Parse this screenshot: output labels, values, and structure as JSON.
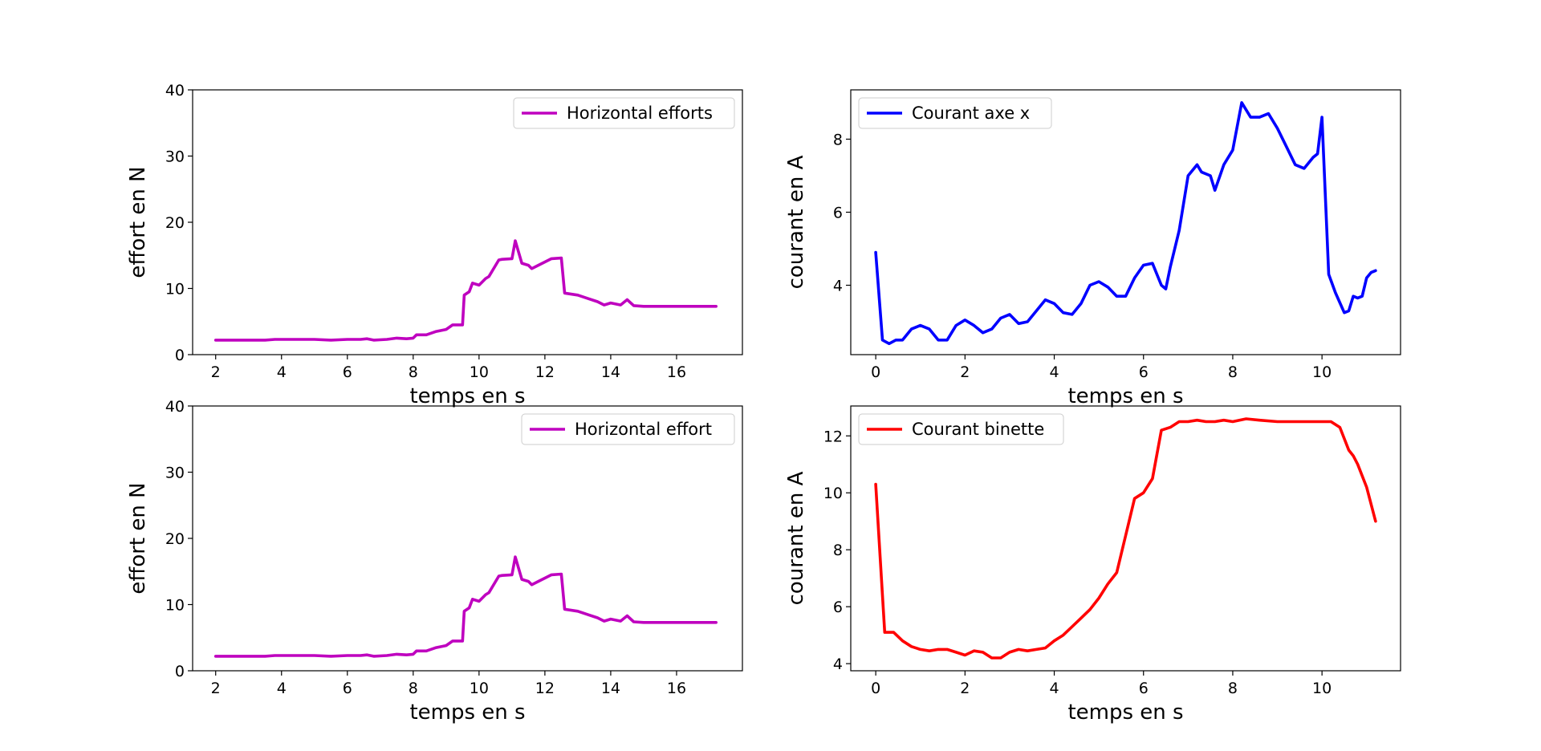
{
  "figure": {
    "background": "#ffffff"
  },
  "chart_data": [
    {
      "id": "top-left",
      "type": "line",
      "xlabel": "temps en s",
      "ylabel": "effort en N",
      "xlim": [
        1.3,
        18
      ],
      "ylim": [
        0,
        40
      ],
      "xticks": [
        2,
        4,
        6,
        8,
        10,
        12,
        14,
        16
      ],
      "yticks": [
        0,
        10,
        20,
        30,
        40
      ],
      "legend": "top-right",
      "series": [
        {
          "name": "Horizontal efforts",
          "color": "#bf00bf",
          "x": [
            2.0,
            2.5,
            3.0,
            3.5,
            3.8,
            4.0,
            4.5,
            5.0,
            5.5,
            6.0,
            6.4,
            6.6,
            6.8,
            7.2,
            7.5,
            7.8,
            8.0,
            8.1,
            8.4,
            8.7,
            9.0,
            9.2,
            9.5,
            9.55,
            9.7,
            9.8,
            10.0,
            10.2,
            10.3,
            10.6,
            10.7,
            11.0,
            11.1,
            11.3,
            11.5,
            11.6,
            11.8,
            12.0,
            12.2,
            12.5,
            12.6,
            13.0,
            13.3,
            13.6,
            13.8,
            14.0,
            14.3,
            14.5,
            14.7,
            15.0,
            16.0,
            17.2
          ],
          "y": [
            2.2,
            2.2,
            2.2,
            2.2,
            2.3,
            2.3,
            2.3,
            2.3,
            2.2,
            2.3,
            2.3,
            2.4,
            2.2,
            2.3,
            2.5,
            2.4,
            2.5,
            3.0,
            3.0,
            3.5,
            3.8,
            4.5,
            4.5,
            9.0,
            9.5,
            10.8,
            10.5,
            11.5,
            11.8,
            14.3,
            14.4,
            14.5,
            17.2,
            13.8,
            13.5,
            13.0,
            13.5,
            14.0,
            14.5,
            14.6,
            9.3,
            9.0,
            8.5,
            8.0,
            7.5,
            7.8,
            7.5,
            8.3,
            7.4,
            7.3,
            7.3,
            7.3
          ]
        }
      ]
    },
    {
      "id": "top-right",
      "type": "line",
      "xlabel": "temps en s",
      "ylabel": "courant en A",
      "xlim": [
        -0.56,
        11.76
      ],
      "ylim": [
        2.1,
        9.35
      ],
      "xticks": [
        0,
        2,
        4,
        6,
        8,
        10
      ],
      "yticks": [
        4,
        6,
        8
      ],
      "legend": "top-left",
      "series": [
        {
          "name": "Courant axe x",
          "color": "#0000ff",
          "x": [
            0.0,
            0.15,
            0.3,
            0.45,
            0.6,
            0.8,
            1.0,
            1.2,
            1.4,
            1.6,
            1.8,
            2.0,
            2.2,
            2.4,
            2.6,
            2.8,
            3.0,
            3.2,
            3.4,
            3.6,
            3.8,
            4.0,
            4.2,
            4.4,
            4.6,
            4.8,
            5.0,
            5.2,
            5.4,
            5.6,
            5.8,
            6.0,
            6.2,
            6.4,
            6.5,
            6.6,
            6.8,
            7.0,
            7.2,
            7.3,
            7.5,
            7.6,
            7.8,
            8.0,
            8.2,
            8.4,
            8.6,
            8.8,
            9.0,
            9.2,
            9.4,
            9.6,
            9.8,
            9.9,
            10.0,
            10.15,
            10.3,
            10.5,
            10.6,
            10.7,
            10.8,
            10.9,
            11.0,
            11.1,
            11.2
          ],
          "y": [
            4.9,
            2.5,
            2.4,
            2.5,
            2.5,
            2.8,
            2.9,
            2.8,
            2.5,
            2.5,
            2.9,
            3.05,
            2.9,
            2.7,
            2.8,
            3.1,
            3.2,
            2.95,
            3.0,
            3.3,
            3.6,
            3.5,
            3.25,
            3.2,
            3.5,
            4.0,
            4.1,
            3.95,
            3.7,
            3.7,
            4.2,
            4.55,
            4.6,
            4.0,
            3.9,
            4.5,
            5.5,
            7.0,
            7.3,
            7.1,
            7.0,
            6.6,
            7.3,
            7.7,
            9.0,
            8.6,
            8.6,
            8.7,
            8.3,
            7.8,
            7.3,
            7.2,
            7.5,
            7.6,
            8.6,
            4.3,
            3.8,
            3.25,
            3.3,
            3.7,
            3.65,
            3.7,
            4.2,
            4.35,
            4.4
          ]
        }
      ]
    },
    {
      "id": "bottom-left",
      "type": "line",
      "xlabel": "temps en s",
      "ylabel": "effort en N",
      "xlim": [
        1.3,
        18
      ],
      "ylim": [
        0,
        40
      ],
      "xticks": [
        2,
        4,
        6,
        8,
        10,
        12,
        14,
        16
      ],
      "yticks": [
        0,
        10,
        20,
        30,
        40
      ],
      "legend": "top-right",
      "series": [
        {
          "name": "Horizontal effort",
          "color": "#bf00bf",
          "x": [
            2.0,
            2.5,
            3.0,
            3.5,
            3.8,
            4.0,
            4.5,
            5.0,
            5.5,
            6.0,
            6.4,
            6.6,
            6.8,
            7.2,
            7.5,
            7.8,
            8.0,
            8.1,
            8.4,
            8.7,
            9.0,
            9.2,
            9.5,
            9.55,
            9.7,
            9.8,
            10.0,
            10.2,
            10.3,
            10.6,
            10.7,
            11.0,
            11.1,
            11.3,
            11.5,
            11.6,
            11.8,
            12.0,
            12.2,
            12.5,
            12.6,
            13.0,
            13.3,
            13.6,
            13.8,
            14.0,
            14.3,
            14.5,
            14.7,
            15.0,
            16.0,
            17.2
          ],
          "y": [
            2.2,
            2.2,
            2.2,
            2.2,
            2.3,
            2.3,
            2.3,
            2.3,
            2.2,
            2.3,
            2.3,
            2.4,
            2.2,
            2.3,
            2.5,
            2.4,
            2.5,
            3.0,
            3.0,
            3.5,
            3.8,
            4.5,
            4.5,
            9.0,
            9.5,
            10.8,
            10.5,
            11.5,
            11.8,
            14.3,
            14.4,
            14.5,
            17.2,
            13.8,
            13.5,
            13.0,
            13.5,
            14.0,
            14.5,
            14.6,
            9.3,
            9.0,
            8.5,
            8.0,
            7.5,
            7.8,
            7.5,
            8.3,
            7.4,
            7.3,
            7.3,
            7.3
          ]
        }
      ]
    },
    {
      "id": "bottom-right",
      "type": "line",
      "xlabel": "temps en s",
      "ylabel": "courant en A",
      "xlim": [
        -0.56,
        11.76
      ],
      "ylim": [
        3.75,
        13.05
      ],
      "xticks": [
        0,
        2,
        4,
        6,
        8,
        10
      ],
      "yticks": [
        4,
        6,
        8,
        10,
        12
      ],
      "legend": "top-left",
      "series": [
        {
          "name": "Courant binette",
          "color": "#ff0000",
          "x": [
            0.0,
            0.2,
            0.4,
            0.6,
            0.8,
            1.0,
            1.2,
            1.4,
            1.6,
            1.8,
            2.0,
            2.2,
            2.4,
            2.6,
            2.8,
            3.0,
            3.2,
            3.4,
            3.6,
            3.8,
            4.0,
            4.2,
            4.4,
            4.6,
            4.8,
            5.0,
            5.2,
            5.4,
            5.6,
            5.8,
            6.0,
            6.2,
            6.4,
            6.6,
            6.8,
            7.0,
            7.2,
            7.4,
            7.6,
            7.8,
            8.0,
            8.3,
            8.6,
            9.0,
            9.4,
            9.8,
            10.0,
            10.2,
            10.4,
            10.6,
            10.7,
            10.8,
            11.0,
            11.2
          ],
          "y": [
            10.3,
            5.1,
            5.1,
            4.8,
            4.6,
            4.5,
            4.45,
            4.5,
            4.5,
            4.4,
            4.3,
            4.45,
            4.4,
            4.2,
            4.2,
            4.4,
            4.5,
            4.45,
            4.5,
            4.55,
            4.8,
            5.0,
            5.3,
            5.6,
            5.9,
            6.3,
            6.8,
            7.2,
            8.5,
            9.8,
            10.0,
            10.5,
            12.2,
            12.3,
            12.5,
            12.5,
            12.55,
            12.5,
            12.5,
            12.55,
            12.5,
            12.6,
            12.55,
            12.5,
            12.5,
            12.5,
            12.5,
            12.5,
            12.3,
            11.5,
            11.3,
            11.0,
            10.2,
            9.0
          ]
        }
      ]
    }
  ]
}
